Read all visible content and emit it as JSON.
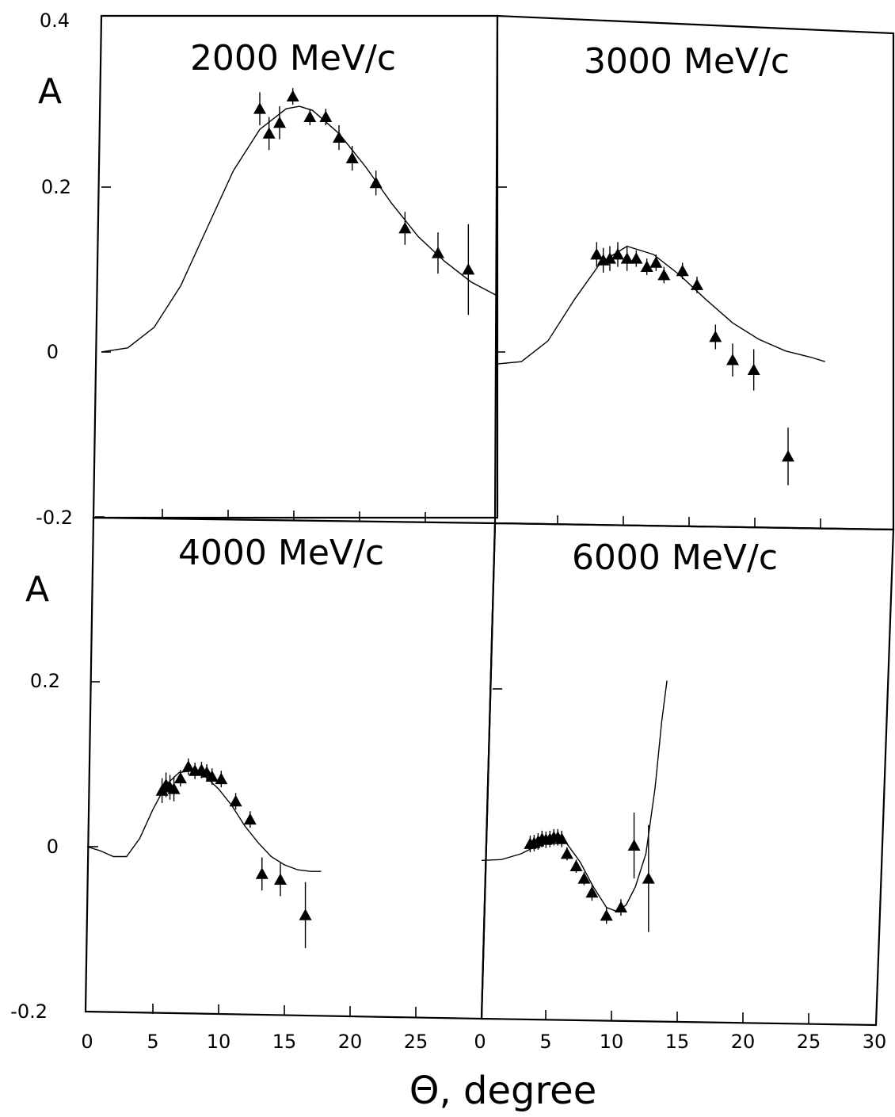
{
  "chart_data": [
    {
      "type": "scatter",
      "title": "2000 MeV/c",
      "ylabel": "A",
      "xlim": [
        0,
        30
      ],
      "ylim": [
        -0.2,
        0.4
      ],
      "yticklabels": [
        "0.4",
        "0.2",
        "0",
        "-0.2"
      ],
      "points": [
        {
          "x": 12,
          "y": 0.295,
          "err": 0.02
        },
        {
          "x": 12.7,
          "y": 0.265,
          "err": 0.02
        },
        {
          "x": 13.5,
          "y": 0.278,
          "err": 0.02
        },
        {
          "x": 14.5,
          "y": 0.31,
          "err": 0.01
        },
        {
          "x": 15.8,
          "y": 0.285,
          "err": 0.01
        },
        {
          "x": 17,
          "y": 0.285,
          "err": 0.01
        },
        {
          "x": 18,
          "y": 0.26,
          "err": 0.015
        },
        {
          "x": 19,
          "y": 0.235,
          "err": 0.015
        },
        {
          "x": 20.8,
          "y": 0.205,
          "err": 0.015
        },
        {
          "x": 23,
          "y": 0.15,
          "err": 0.02
        },
        {
          "x": 25.5,
          "y": 0.12,
          "err": 0.025
        },
        {
          "x": 27.8,
          "y": 0.1,
          "err": 0.055
        }
      ],
      "curve": [
        [
          0,
          0
        ],
        [
          2,
          0.005
        ],
        [
          4,
          0.03
        ],
        [
          6,
          0.08
        ],
        [
          8,
          0.15
        ],
        [
          10,
          0.22
        ],
        [
          12,
          0.27
        ],
        [
          14,
          0.295
        ],
        [
          15,
          0.298
        ],
        [
          16,
          0.293
        ],
        [
          18,
          0.265
        ],
        [
          20,
          0.225
        ],
        [
          22,
          0.18
        ],
        [
          24,
          0.14
        ],
        [
          26,
          0.11
        ],
        [
          28,
          0.085
        ],
        [
          30,
          0.068
        ]
      ]
    },
    {
      "type": "scatter",
      "title": "3000 MeV/c",
      "xlim": [
        0,
        30
      ],
      "ylim": [
        -0.2,
        0.4
      ],
      "points": [
        {
          "x": 7.7,
          "y": 0.125,
          "err": 0.015
        },
        {
          "x": 8.2,
          "y": 0.118,
          "err": 0.015
        },
        {
          "x": 8.7,
          "y": 0.12,
          "err": 0.015
        },
        {
          "x": 9.3,
          "y": 0.125,
          "err": 0.015
        },
        {
          "x": 10,
          "y": 0.12,
          "err": 0.015
        },
        {
          "x": 10.7,
          "y": 0.12,
          "err": 0.01
        },
        {
          "x": 11.5,
          "y": 0.11,
          "err": 0.01
        },
        {
          "x": 12.2,
          "y": 0.115,
          "err": 0.01
        },
        {
          "x": 12.8,
          "y": 0.1,
          "err": 0.01
        },
        {
          "x": 14.2,
          "y": 0.105,
          "err": 0.01
        },
        {
          "x": 15.3,
          "y": 0.088,
          "err": 0.01
        },
        {
          "x": 16.7,
          "y": 0.025,
          "err": 0.015
        },
        {
          "x": 18,
          "y": -0.003,
          "err": 0.02
        },
        {
          "x": 19.6,
          "y": -0.015,
          "err": 0.025
        },
        {
          "x": 22.2,
          "y": -0.12,
          "err": 0.035
        }
      ],
      "curve": [
        [
          0,
          -0.008
        ],
        [
          2,
          -0.005
        ],
        [
          4,
          0.02
        ],
        [
          6,
          0.07
        ],
        [
          8,
          0.115
        ],
        [
          10,
          0.135
        ],
        [
          12,
          0.125
        ],
        [
          14,
          0.1
        ],
        [
          16,
          0.07
        ],
        [
          18,
          0.042
        ],
        [
          20,
          0.022
        ],
        [
          22,
          0.008
        ],
        [
          24,
          0.0
        ],
        [
          25,
          -0.005
        ]
      ]
    },
    {
      "type": "scatter",
      "title": "4000 MeV/c",
      "ylabel": "A",
      "xlim": [
        0,
        30
      ],
      "ylim": [
        -0.2,
        0.4
      ],
      "yticklabels": [
        "0.2",
        "0",
        "-0.2"
      ],
      "xticklabels": [
        "0",
        "5",
        "10",
        "15",
        "20",
        "25"
      ],
      "points": [
        {
          "x": 5.7,
          "y": 0.068,
          "err": 0.015
        },
        {
          "x": 6.0,
          "y": 0.075,
          "err": 0.015
        },
        {
          "x": 6.3,
          "y": 0.072,
          "err": 0.015
        },
        {
          "x": 6.6,
          "y": 0.07,
          "err": 0.015
        },
        {
          "x": 7.1,
          "y": 0.083,
          "err": 0.01
        },
        {
          "x": 7.7,
          "y": 0.097,
          "err": 0.01
        },
        {
          "x": 8.2,
          "y": 0.092,
          "err": 0.01
        },
        {
          "x": 8.7,
          "y": 0.093,
          "err": 0.01
        },
        {
          "x": 9.1,
          "y": 0.09,
          "err": 0.01
        },
        {
          "x": 9.5,
          "y": 0.085,
          "err": 0.01
        },
        {
          "x": 10.2,
          "y": 0.082,
          "err": 0.01
        },
        {
          "x": 11.3,
          "y": 0.055,
          "err": 0.01
        },
        {
          "x": 12.4,
          "y": 0.033,
          "err": 0.01
        },
        {
          "x": 13.3,
          "y": -0.033,
          "err": 0.02
        },
        {
          "x": 14.7,
          "y": -0.04,
          "err": 0.02
        },
        {
          "x": 16.6,
          "y": -0.083,
          "err": 0.04
        }
      ],
      "curve": [
        [
          0,
          0.0
        ],
        [
          1,
          -0.005
        ],
        [
          2,
          -0.012
        ],
        [
          3,
          -0.012
        ],
        [
          4,
          0.01
        ],
        [
          5,
          0.045
        ],
        [
          6,
          0.075
        ],
        [
          7,
          0.09
        ],
        [
          8,
          0.092
        ],
        [
          9,
          0.085
        ],
        [
          10,
          0.07
        ],
        [
          11,
          0.05
        ],
        [
          12,
          0.025
        ],
        [
          13,
          0.005
        ],
        [
          14,
          -0.012
        ],
        [
          15,
          -0.022
        ],
        [
          16,
          -0.028
        ],
        [
          17,
          -0.03
        ],
        [
          17.8,
          -0.03
        ]
      ]
    },
    {
      "type": "scatter",
      "title": "6000 MeV/c",
      "xlim": [
        0,
        30
      ],
      "ylim": [
        -0.2,
        0.4
      ],
      "xticklabels": [
        "0",
        "5",
        "10",
        "15",
        "20",
        "25",
        "30"
      ],
      "points": [
        {
          "x": 3.7,
          "y": 0.012,
          "err": 0.01
        },
        {
          "x": 4.0,
          "y": 0.013,
          "err": 0.01
        },
        {
          "x": 4.3,
          "y": 0.015,
          "err": 0.01
        },
        {
          "x": 4.6,
          "y": 0.018,
          "err": 0.01
        },
        {
          "x": 4.9,
          "y": 0.017,
          "err": 0.01
        },
        {
          "x": 5.2,
          "y": 0.018,
          "err": 0.01
        },
        {
          "x": 5.5,
          "y": 0.02,
          "err": 0.01
        },
        {
          "x": 5.8,
          "y": 0.02,
          "err": 0.01
        },
        {
          "x": 6.1,
          "y": 0.018,
          "err": 0.01
        },
        {
          "x": 6.5,
          "y": 0.0,
          "err": 0.008
        },
        {
          "x": 7.2,
          "y": -0.015,
          "err": 0.008
        },
        {
          "x": 7.8,
          "y": -0.03,
          "err": 0.008
        },
        {
          "x": 8.4,
          "y": -0.047,
          "err": 0.01
        },
        {
          "x": 9.5,
          "y": -0.075,
          "err": 0.01
        },
        {
          "x": 10.6,
          "y": -0.065,
          "err": 0.01
        },
        {
          "x": 11.6,
          "y": 0.01,
          "err": 0.04
        },
        {
          "x": 12.7,
          "y": -0.03,
          "err": 0.065
        }
      ],
      "curve": [
        [
          0,
          -0.008
        ],
        [
          1.5,
          -0.007
        ],
        [
          3,
          0.0
        ],
        [
          4.5,
          0.012
        ],
        [
          5.5,
          0.018
        ],
        [
          6.5,
          0.012
        ],
        [
          7.5,
          -0.01
        ],
        [
          8.5,
          -0.04
        ],
        [
          9.5,
          -0.065
        ],
        [
          10.3,
          -0.07
        ],
        [
          11,
          -0.062
        ],
        [
          11.7,
          -0.04
        ],
        [
          12.5,
          0.0
        ],
        [
          13.2,
          0.08
        ],
        [
          13.7,
          0.16
        ],
        [
          14.1,
          0.21
        ]
      ]
    }
  ],
  "xlabel": "Θ, degree"
}
